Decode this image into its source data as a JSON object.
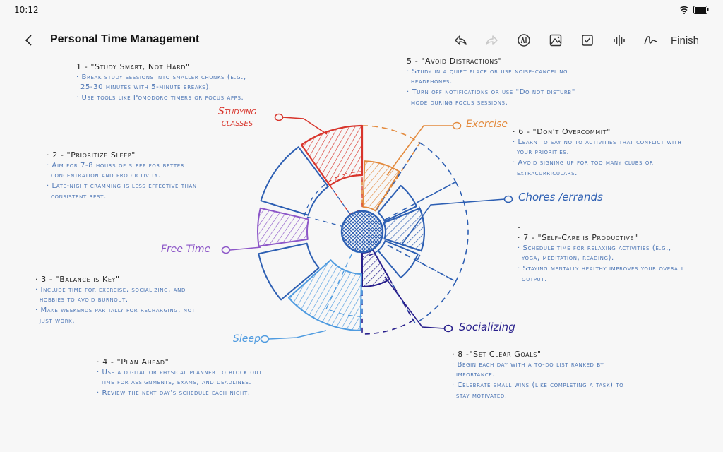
{
  "status_bar": {
    "time": "10:12",
    "wifi_icon": "wifi-icon",
    "battery_icon": "battery-icon"
  },
  "toolbar": {
    "title": "Personal Time Management",
    "finish_label": "Finish",
    "tools": [
      "undo-icon",
      "redo-icon",
      "ai-icon",
      "image-icon",
      "checkbox-icon",
      "audio-icon",
      "pen-icon"
    ]
  },
  "notes": [
    {
      "heading": "1 - \"Study Smart, Not Hard\"",
      "bullets": [
        "· Break study sessions into smaller chunks (e.g., 25-30 minutes with 5-minute breaks).",
        "· Use tools like Pomodoro timers or focus apps."
      ]
    },
    {
      "heading": "· 2 - \"Prioritize Sleep\"",
      "bullets": [
        "· Aim for 7-8 hours of sleep for better concentration and productivity.",
        "· Late-night cramming is less effective than consistent rest."
      ]
    },
    {
      "heading": "· 3 - \"Balance is Key\"",
      "bullets": [
        "· Include time for exercise, socializing, and hobbies to avoid burnout.",
        "· Make weekends partially for recharging, not just work."
      ]
    },
    {
      "heading": "· 4 - \"Plan Ahead\"",
      "bullets": [
        "· Use a digital or physical planner to block out time for assignments, exams, and deadlines.",
        "· Review the next day's schedule each night."
      ]
    },
    {
      "heading": "5 - \"Avoid Distractions\"",
      "bullets": [
        "· Study in a quiet place or use noise-canceling headphones.",
        "· Turn off notifications or use \"Do not disturb\" mode during focus sessions."
      ]
    },
    {
      "heading": "· 6 - \"Don't Overcommit\"",
      "bullets": [
        "· Learn to say no to activities that conflict with your priorities.",
        "· Avoid signing up for too many clubs or extracurriculars."
      ]
    },
    {
      "heading": "· 7 - \"Self-Care is Productive\"",
      "bullets": [
        "· Schedule time for relaxing activities (e.g., yoga, meditation, reading).",
        "· Staying mentally healthy improves your overall output."
      ]
    },
    {
      "heading": "· 8 -\"Set Clear Goals\"",
      "bullets": [
        "· Begin each day with a to-do list ranked by importance.",
        "· Celebrate small wins (like completing a task) to stay motivated."
      ]
    }
  ],
  "diagram": {
    "labels": {
      "studying": "Studying classes",
      "exercise": "Exercise",
      "chores": "Chores /errands",
      "free_time": "Free Time",
      "sleep": "Sleep",
      "socializing": "Socializing"
    },
    "colors": {
      "studying": "#d8342b",
      "exercise": "#e38a3d",
      "chores": "#2d5fb3",
      "free_time": "#8d57c8",
      "sleep": "#4f9be0",
      "socializing": "#281f8c",
      "outline": "#2d5fb3",
      "text": "#4d76b5"
    }
  }
}
